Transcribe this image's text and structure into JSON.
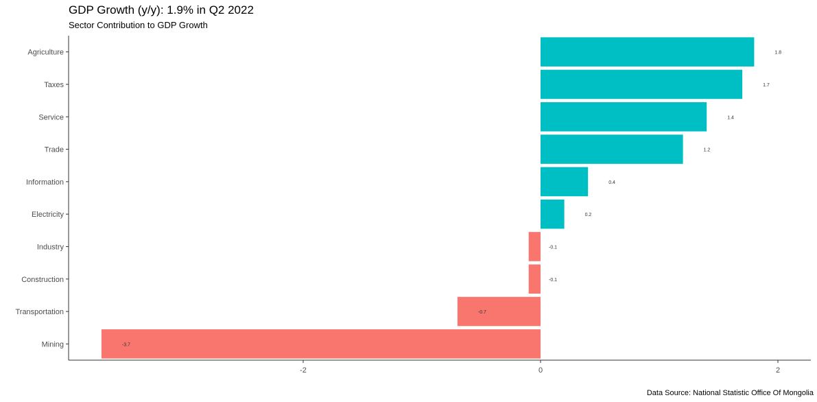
{
  "title": "GDP Growth (y/y): 1.9% in Q2 2022",
  "subtitle": "Sector Contribution to GDP Growth",
  "caption": "Data Source: National Statistic Office Of Mongolia",
  "colors": {
    "positive": "#00BFC4",
    "negative": "#F8766D",
    "axis": "#333333"
  },
  "chart_data": {
    "type": "bar",
    "orientation": "horizontal",
    "title": "GDP Growth (y/y): 1.9% in Q2 2022",
    "subtitle": "Sector Contribution to GDP Growth",
    "xlabel": "",
    "ylabel": "",
    "xlim": [
      -3.75,
      2.25
    ],
    "x_ticks": [
      -2,
      0,
      2
    ],
    "x_tick_labels": [
      "-2",
      "0",
      "2"
    ],
    "grid": false,
    "legend": "none",
    "categories": [
      "Agriculture",
      "Taxes",
      "Service",
      "Trade",
      "Information",
      "Electricity",
      "Industry",
      "Construction",
      "Transportation",
      "Mining"
    ],
    "values": [
      1.8,
      1.7,
      1.4,
      1.2,
      0.4,
      0.2,
      -0.1,
      -0.1,
      -0.7,
      -3.7
    ],
    "value_labels": [
      "1.8",
      "1.7",
      "1.4",
      "1.2",
      "0.4",
      "0.2",
      "-0.1",
      "-0.1",
      "-0.7",
      "-3.7"
    ]
  }
}
